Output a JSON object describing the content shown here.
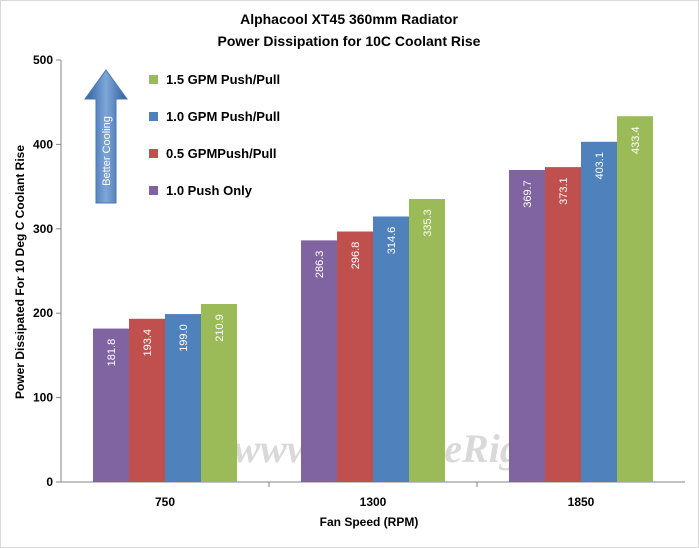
{
  "chart_data": {
    "type": "bar",
    "title": "Alphacool  XT45 360mm Radiator",
    "subtitle": "Power Dissipation  for 10C Coolant  Rise",
    "xlabel": "Fan Speed (RPM)",
    "ylabel": "Power Dissipated For 10 Deg C Coolant Rise",
    "categories": [
      "750",
      "1300",
      "1850"
    ],
    "ylim": [
      0,
      500
    ],
    "yticks": [
      0,
      100,
      200,
      300,
      400,
      500
    ],
    "grid": false,
    "legend_position": "top-left",
    "series": [
      {
        "name": "1.0 Push Only",
        "color": "#8064a2",
        "values": [
          181.8,
          286.3,
          369.7
        ],
        "labels": [
          "181.8",
          "286.3",
          "369.7"
        ]
      },
      {
        "name": "0.5 GPMPush/Pull",
        "color": "#c0504d",
        "values": [
          193.4,
          296.8,
          373.1
        ],
        "labels": [
          "193.4",
          "296.8",
          "373.1"
        ]
      },
      {
        "name": "1.0 GPM Push/Pull",
        "color": "#4f81bd",
        "values": [
          199.0,
          314.6,
          403.1
        ],
        "labels": [
          "199.0",
          "314.6",
          "403.1"
        ]
      },
      {
        "name": "1.5 GPM Push/Pull",
        "color": "#9bbb59",
        "values": [
          210.9,
          335.3,
          433.4
        ],
        "labels": [
          "210.9",
          "335.3",
          "433.4"
        ]
      }
    ],
    "legend_order": [
      3,
      2,
      1,
      0
    ],
    "annotation": "Better Cooling",
    "watermark": "www.ExtremeRigs.net"
  }
}
